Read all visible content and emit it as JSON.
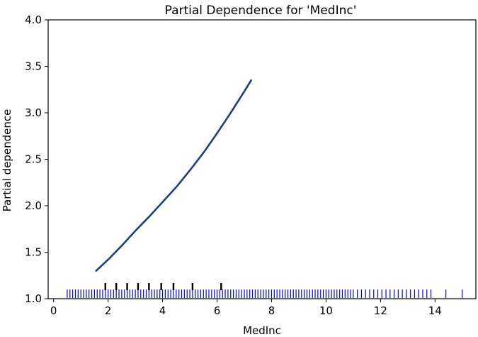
{
  "chart_data": {
    "type": "line",
    "title": "Partial Dependence for 'MedInc'",
    "xlabel": "MedInc",
    "ylabel": "Partial dependence",
    "xlim": [
      -0.2,
      15.5
    ],
    "ylim": [
      1.0,
      4.0
    ],
    "xticks": [
      "0",
      "2",
      "4",
      "6",
      "8",
      "10",
      "12",
      "14"
    ],
    "xtick_values": [
      0,
      2,
      4,
      6,
      8,
      10,
      12,
      14
    ],
    "yticks": [
      "1.0",
      "1.5",
      "2.0",
      "2.5",
      "3.0",
      "3.5",
      "4.0"
    ],
    "ytick_values": [
      1.0,
      1.5,
      2.0,
      2.5,
      3.0,
      3.5,
      4.0
    ],
    "grid": false,
    "line_color": "#1f3f7a",
    "rug_color": "#0000ff",
    "decile_color": "#000000",
    "series": [
      {
        "x": [
          1.56,
          2.0,
          2.5,
          3.0,
          3.5,
          4.0,
          4.5,
          5.0,
          5.5,
          6.0,
          6.5,
          7.0,
          7.25
        ],
        "y": [
          1.3,
          1.42,
          1.57,
          1.73,
          1.88,
          2.04,
          2.2,
          2.38,
          2.57,
          2.78,
          3.0,
          3.23,
          3.35
        ]
      }
    ],
    "deciles": [
      1.9,
      2.3,
      2.7,
      3.1,
      3.5,
      3.95,
      4.4,
      5.1,
      6.15
    ],
    "rug_x": [
      0.5,
      0.6,
      0.7,
      0.8,
      0.9,
      1.0,
      1.1,
      1.2,
      1.3,
      1.4,
      1.5,
      1.6,
      1.7,
      1.8,
      1.9,
      2.0,
      2.1,
      2.2,
      2.3,
      2.4,
      2.5,
      2.6,
      2.7,
      2.8,
      2.9,
      3.0,
      3.1,
      3.2,
      3.3,
      3.4,
      3.5,
      3.6,
      3.7,
      3.8,
      3.9,
      4.0,
      4.1,
      4.2,
      4.3,
      4.4,
      4.5,
      4.6,
      4.7,
      4.8,
      4.9,
      5.0,
      5.1,
      5.2,
      5.3,
      5.4,
      5.5,
      5.6,
      5.7,
      5.8,
      5.9,
      6.0,
      6.1,
      6.2,
      6.3,
      6.4,
      6.5,
      6.6,
      6.7,
      6.8,
      6.9,
      7.0,
      7.1,
      7.2,
      7.3,
      7.4,
      7.5,
      7.6,
      7.7,
      7.8,
      7.9,
      8.0,
      8.1,
      8.2,
      8.3,
      8.4,
      8.5,
      8.6,
      8.7,
      8.8,
      8.9,
      9.0,
      9.1,
      9.2,
      9.3,
      9.4,
      9.5,
      9.6,
      9.7,
      9.8,
      9.9,
      10.0,
      10.1,
      10.2,
      10.3,
      10.4,
      10.5,
      10.6,
      10.7,
      10.8,
      10.9,
      11.0,
      11.15,
      11.3,
      11.45,
      11.6,
      11.75,
      11.9,
      12.05,
      12.2,
      12.35,
      12.5,
      12.65,
      12.8,
      12.95,
      13.1,
      13.25,
      13.4,
      13.55,
      13.7,
      13.85,
      14.4,
      15.0
    ]
  }
}
